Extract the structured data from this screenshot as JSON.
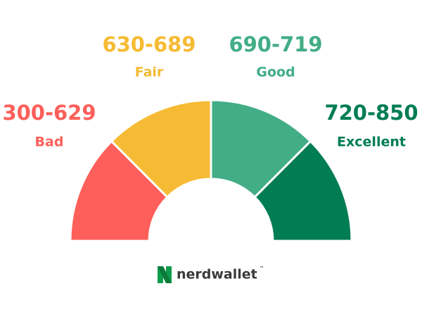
{
  "gauge": {
    "segments": [
      {
        "range": "300-629",
        "label": "Bad",
        "color": "#fe5f5a"
      },
      {
        "range": "630-689",
        "label": "Fair",
        "color": "#f6bb34"
      },
      {
        "range": "690-719",
        "label": "Good",
        "color": "#42ad86"
      },
      {
        "range": "720-850",
        "label": "Excellent",
        "color": "#007d52"
      }
    ]
  },
  "logo": {
    "name": "nerdwallet",
    "trademark": "™"
  }
}
